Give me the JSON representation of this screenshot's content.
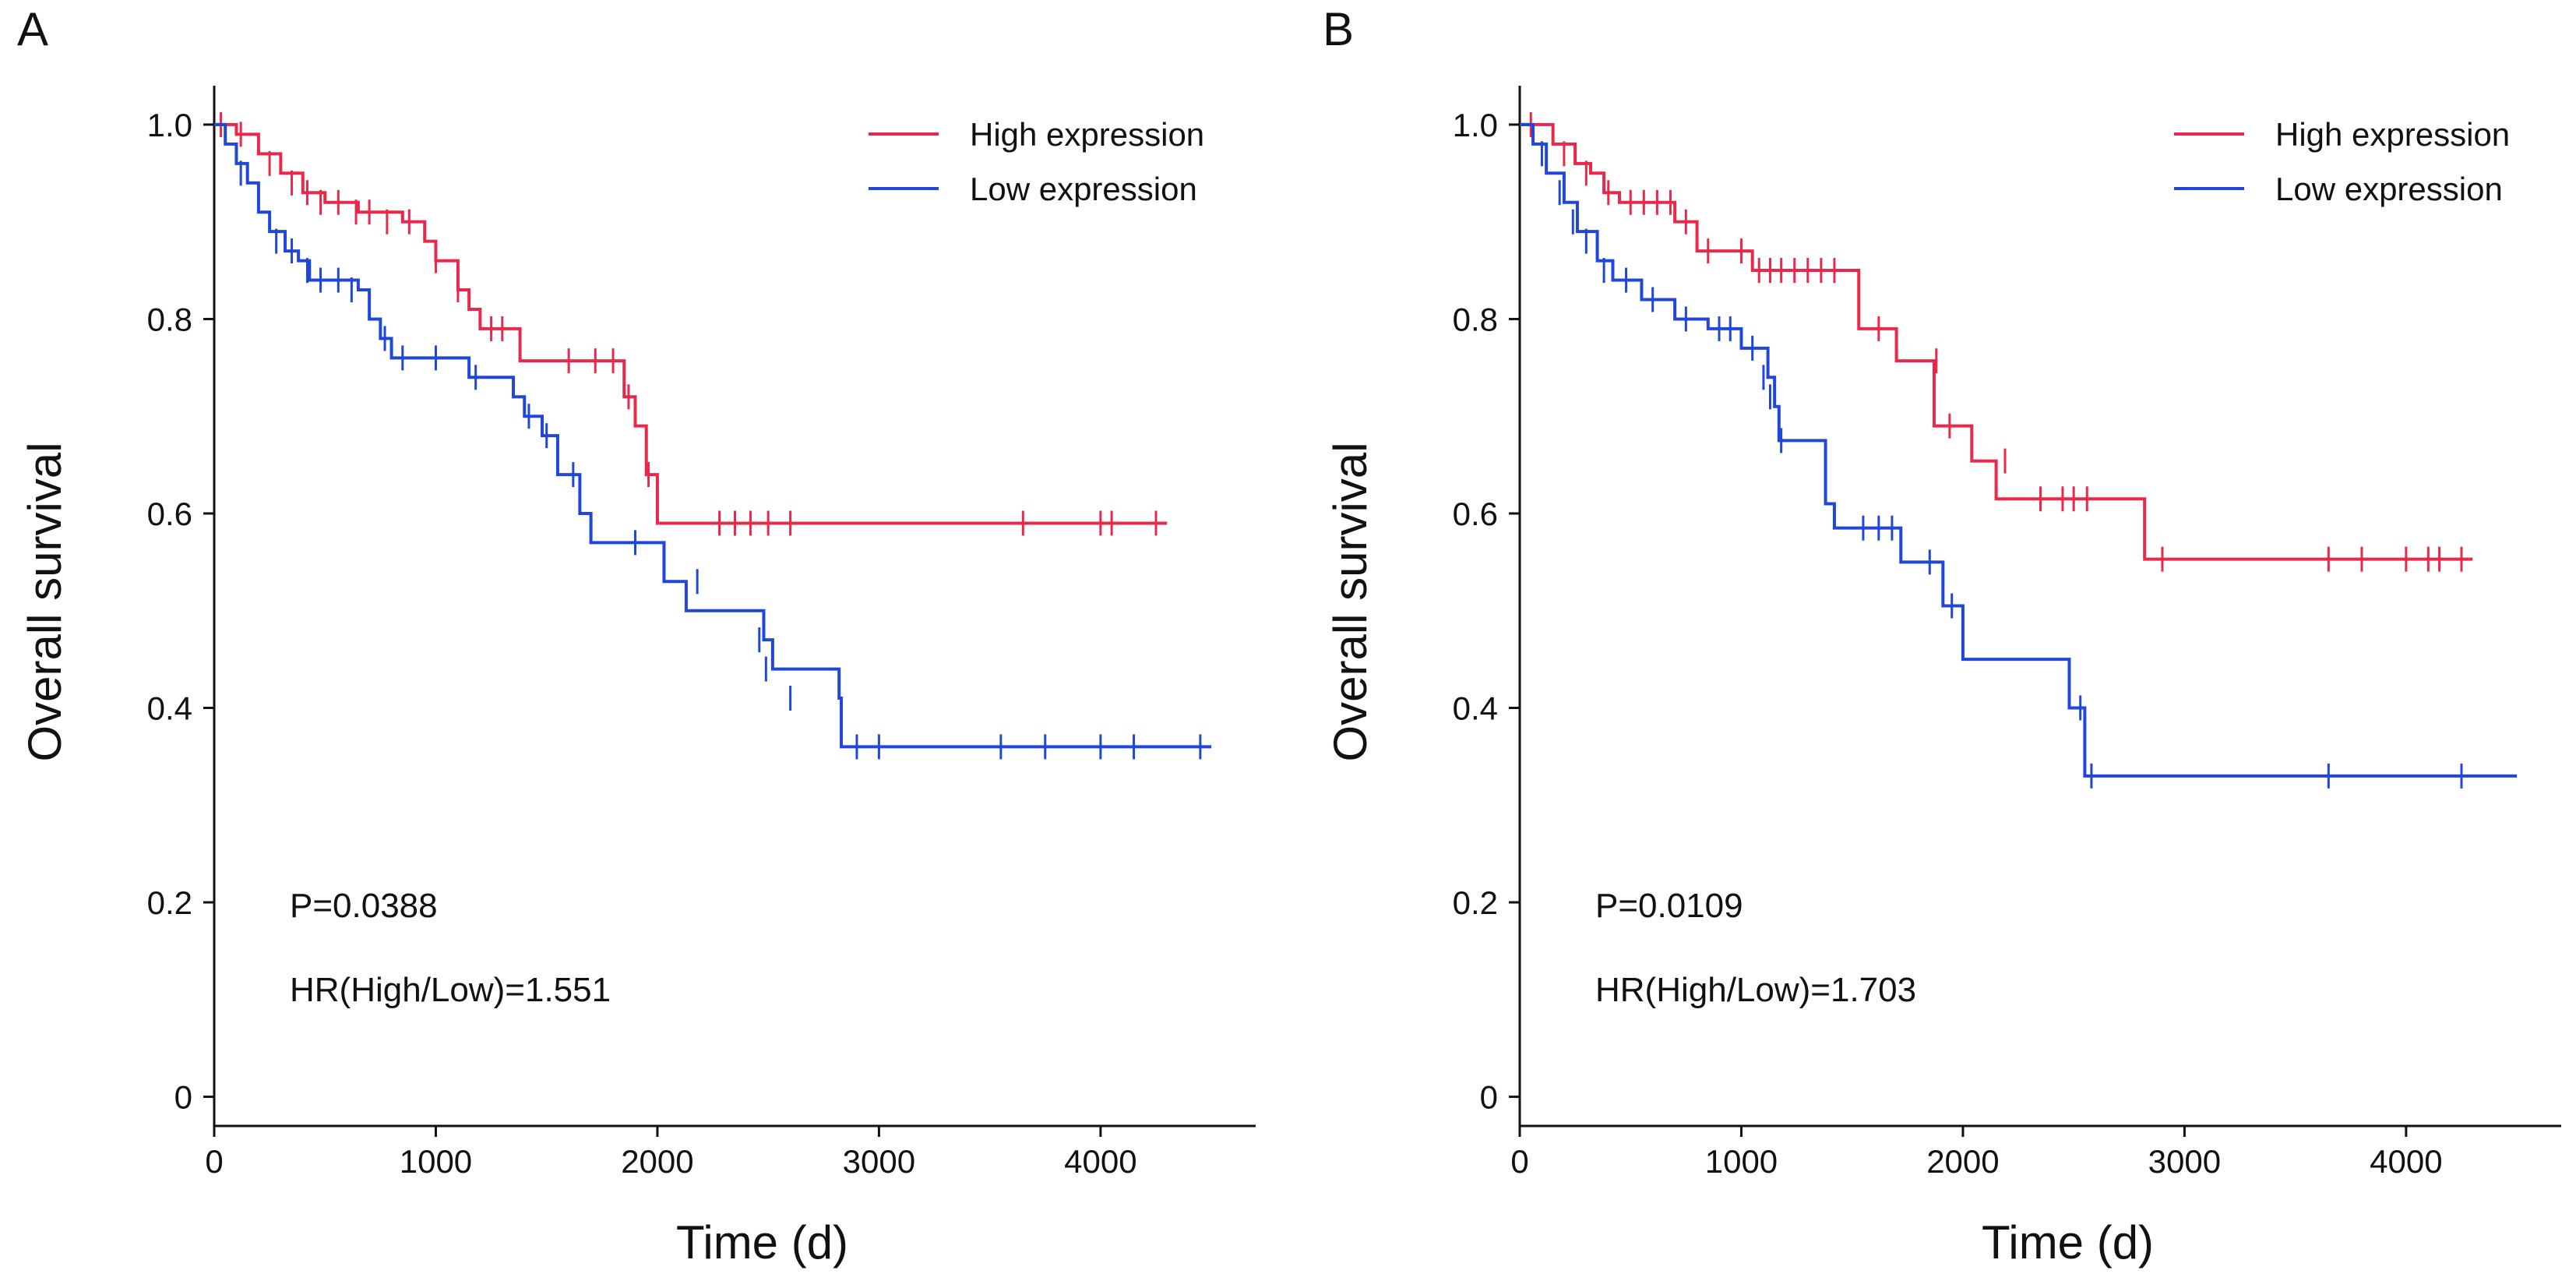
{
  "colors": {
    "high": "#e8294b",
    "low": "#2147d6",
    "axis": "#111111"
  },
  "chart_data": [
    {
      "panel": "A",
      "type": "line",
      "xlabel": "Time (d)",
      "ylabel": "Overall survival",
      "xlim": [
        0,
        4700
      ],
      "ylim": [
        -0.03,
        1.04
      ],
      "xticks": [
        0,
        1000,
        2000,
        3000,
        4000
      ],
      "yticks": [
        {
          "v": 0,
          "label": "0"
        },
        {
          "v": 0.2,
          "label": "0.2"
        },
        {
          "v": 0.4,
          "label": "0.4"
        },
        {
          "v": 0.6,
          "label": "0.6"
        },
        {
          "v": 0.8,
          "label": "0.8"
        },
        {
          "v": 1.0,
          "label": "1.0"
        }
      ],
      "legend": "top-right",
      "annotations": [
        "P=0.0388",
        "HR(High/Low)=1.551"
      ],
      "series": [
        {
          "name": "High expression",
          "color": "#e8294b",
          "steps": [
            [
              0,
              1.0
            ],
            [
              100,
              0.99
            ],
            [
              200,
              0.97
            ],
            [
              300,
              0.95
            ],
            [
              400,
              0.93
            ],
            [
              500,
              0.92
            ],
            [
              650,
              0.91
            ],
            [
              850,
              0.9
            ],
            [
              950,
              0.88
            ],
            [
              1000,
              0.86
            ],
            [
              1100,
              0.83
            ],
            [
              1150,
              0.81
            ],
            [
              1200,
              0.79
            ],
            [
              1380,
              0.757
            ],
            [
              1850,
              0.72
            ],
            [
              1900,
              0.69
            ],
            [
              1950,
              0.64
            ],
            [
              2000,
              0.59
            ],
            [
              4300,
              0.59
            ]
          ],
          "censor": [
            [
              30,
              1.0
            ],
            [
              120,
              0.99
            ],
            [
              250,
              0.96
            ],
            [
              350,
              0.94
            ],
            [
              420,
              0.93
            ],
            [
              480,
              0.92
            ],
            [
              560,
              0.92
            ],
            [
              640,
              0.91
            ],
            [
              700,
              0.91
            ],
            [
              780,
              0.9
            ],
            [
              880,
              0.9
            ],
            [
              1000,
              0.86
            ],
            [
              1100,
              0.83
            ],
            [
              1250,
              0.79
            ],
            [
              1300,
              0.79
            ],
            [
              1600,
              0.757
            ],
            [
              1720,
              0.757
            ],
            [
              1800,
              0.757
            ],
            [
              1870,
              0.72
            ],
            [
              1960,
              0.64
            ],
            [
              2280,
              0.59
            ],
            [
              2350,
              0.59
            ],
            [
              2420,
              0.59
            ],
            [
              2500,
              0.59
            ],
            [
              2600,
              0.59
            ],
            [
              3650,
              0.59
            ],
            [
              4000,
              0.59
            ],
            [
              4050,
              0.59
            ],
            [
              4250,
              0.59
            ]
          ]
        },
        {
          "name": "Low expression",
          "color": "#2147d6",
          "steps": [
            [
              0,
              1.0
            ],
            [
              50,
              0.98
            ],
            [
              100,
              0.96
            ],
            [
              150,
              0.94
            ],
            [
              200,
              0.91
            ],
            [
              250,
              0.89
            ],
            [
              320,
              0.87
            ],
            [
              380,
              0.86
            ],
            [
              430,
              0.84
            ],
            [
              650,
              0.83
            ],
            [
              700,
              0.8
            ],
            [
              750,
              0.78
            ],
            [
              800,
              0.76
            ],
            [
              1150,
              0.74
            ],
            [
              1350,
              0.72
            ],
            [
              1400,
              0.7
            ],
            [
              1480,
              0.68
            ],
            [
              1550,
              0.64
            ],
            [
              1650,
              0.6
            ],
            [
              1700,
              0.57
            ],
            [
              2030,
              0.53
            ],
            [
              2130,
              0.5
            ],
            [
              2480,
              0.47
            ],
            [
              2520,
              0.44
            ],
            [
              2820,
              0.41
            ],
            [
              2830,
              0.36
            ],
            [
              4500,
              0.36
            ]
          ],
          "censor": [
            [
              120,
              0.95
            ],
            [
              280,
              0.88
            ],
            [
              350,
              0.87
            ],
            [
              420,
              0.85
            ],
            [
              480,
              0.84
            ],
            [
              560,
              0.84
            ],
            [
              620,
              0.83
            ],
            [
              770,
              0.78
            ],
            [
              850,
              0.76
            ],
            [
              1000,
              0.76
            ],
            [
              1180,
              0.74
            ],
            [
              1420,
              0.7
            ],
            [
              1500,
              0.68
            ],
            [
              1620,
              0.64
            ],
            [
              1900,
              0.57
            ],
            [
              2180,
              0.53
            ],
            [
              2460,
              0.47
            ],
            [
              2490,
              0.44
            ],
            [
              2600,
              0.41
            ],
            [
              2900,
              0.36
            ],
            [
              3000,
              0.36
            ],
            [
              3550,
              0.36
            ],
            [
              3750,
              0.36
            ],
            [
              4000,
              0.36
            ],
            [
              4150,
              0.36
            ],
            [
              4450,
              0.36
            ]
          ]
        }
      ]
    },
    {
      "panel": "B",
      "type": "line",
      "xlabel": "Time (d)",
      "ylabel": "Overall survival",
      "xlim": [
        0,
        4700
      ],
      "ylim": [
        -0.03,
        1.04
      ],
      "xticks": [
        0,
        1000,
        2000,
        3000,
        4000
      ],
      "yticks": [
        {
          "v": 0,
          "label": "0"
        },
        {
          "v": 0.2,
          "label": "0.2"
        },
        {
          "v": 0.4,
          "label": "0.4"
        },
        {
          "v": 0.6,
          "label": "0.6"
        },
        {
          "v": 0.8,
          "label": "0.8"
        },
        {
          "v": 1.0,
          "label": "1.0"
        }
      ],
      "legend": "top-right",
      "annotations": [
        "P=0.0109",
        "HR(High/Low)=1.703"
      ],
      "series": [
        {
          "name": "High expression",
          "color": "#e8294b",
          "steps": [
            [
              0,
              1.0
            ],
            [
              150,
              0.98
            ],
            [
              250,
              0.96
            ],
            [
              320,
              0.95
            ],
            [
              380,
              0.93
            ],
            [
              450,
              0.92
            ],
            [
              700,
              0.9
            ],
            [
              800,
              0.87
            ],
            [
              1050,
              0.85
            ],
            [
              1530,
              0.79
            ],
            [
              1700,
              0.757
            ],
            [
              1870,
              0.69
            ],
            [
              2040,
              0.654
            ],
            [
              2150,
              0.615
            ],
            [
              2820,
              0.553
            ],
            [
              4300,
              0.553
            ]
          ],
          "censor": [
            [
              50,
              1.0
            ],
            [
              200,
              0.97
            ],
            [
              300,
              0.95
            ],
            [
              400,
              0.93
            ],
            [
              500,
              0.92
            ],
            [
              560,
              0.92
            ],
            [
              620,
              0.92
            ],
            [
              680,
              0.92
            ],
            [
              750,
              0.9
            ],
            [
              850,
              0.87
            ],
            [
              1000,
              0.87
            ],
            [
              1080,
              0.85
            ],
            [
              1130,
              0.85
            ],
            [
              1180,
              0.85
            ],
            [
              1240,
              0.85
            ],
            [
              1300,
              0.85
            ],
            [
              1360,
              0.85
            ],
            [
              1420,
              0.85
            ],
            [
              1620,
              0.79
            ],
            [
              1880,
              0.757
            ],
            [
              1940,
              0.69
            ],
            [
              2190,
              0.654
            ],
            [
              2350,
              0.615
            ],
            [
              2450,
              0.615
            ],
            [
              2500,
              0.615
            ],
            [
              2560,
              0.615
            ],
            [
              2900,
              0.553
            ],
            [
              3650,
              0.553
            ],
            [
              3800,
              0.553
            ],
            [
              4000,
              0.553
            ],
            [
              4100,
              0.553
            ],
            [
              4150,
              0.553
            ],
            [
              4250,
              0.553
            ]
          ]
        },
        {
          "name": "Low expression",
          "color": "#2147d6",
          "steps": [
            [
              0,
              1.0
            ],
            [
              60,
              0.98
            ],
            [
              120,
              0.95
            ],
            [
              200,
              0.92
            ],
            [
              260,
              0.89
            ],
            [
              350,
              0.86
            ],
            [
              420,
              0.84
            ],
            [
              550,
              0.82
            ],
            [
              700,
              0.8
            ],
            [
              850,
              0.79
            ],
            [
              1000,
              0.77
            ],
            [
              1120,
              0.74
            ],
            [
              1150,
              0.71
            ],
            [
              1170,
              0.675
            ],
            [
              1380,
              0.61
            ],
            [
              1420,
              0.585
            ],
            [
              1720,
              0.55
            ],
            [
              1910,
              0.505
            ],
            [
              2000,
              0.45
            ],
            [
              2480,
              0.4
            ],
            [
              2550,
              0.33
            ],
            [
              4500,
              0.33
            ]
          ],
          "censor": [
            [
              100,
              0.97
            ],
            [
              180,
              0.93
            ],
            [
              240,
              0.9
            ],
            [
              300,
              0.88
            ],
            [
              380,
              0.85
            ],
            [
              480,
              0.84
            ],
            [
              600,
              0.82
            ],
            [
              750,
              0.8
            ],
            [
              900,
              0.79
            ],
            [
              950,
              0.79
            ],
            [
              1050,
              0.77
            ],
            [
              1100,
              0.74
            ],
            [
              1130,
              0.72
            ],
            [
              1180,
              0.675
            ],
            [
              1550,
              0.585
            ],
            [
              1620,
              0.585
            ],
            [
              1680,
              0.585
            ],
            [
              1850,
              0.55
            ],
            [
              1950,
              0.505
            ],
            [
              2530,
              0.4
            ],
            [
              2580,
              0.33
            ],
            [
              3650,
              0.33
            ],
            [
              4250,
              0.33
            ]
          ]
        }
      ]
    }
  ]
}
